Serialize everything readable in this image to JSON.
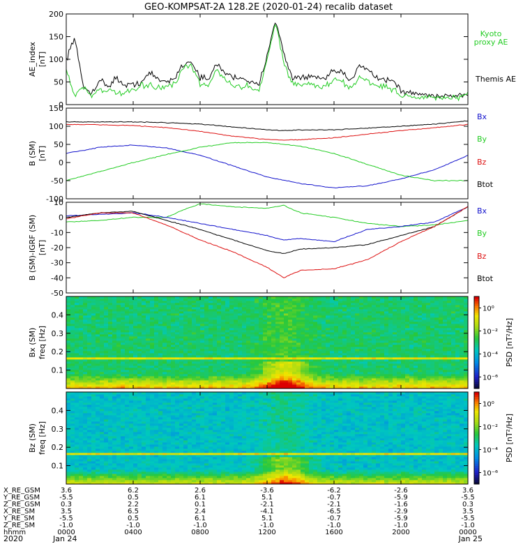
{
  "title": "GEO-KOMPSAT-2A 128.2E (2020-01-24) recalib dataset",
  "colors": {
    "black": "#000000",
    "green": "#22cc22",
    "red": "#dd1111",
    "blue": "#1111cc"
  },
  "chart_data": [
    {
      "type": "line",
      "ylabel": [
        "AE_index",
        "[nT]"
      ],
      "ylim": [
        0,
        200
      ],
      "yticks": [
        0,
        50,
        100,
        150,
        200
      ],
      "legend": [
        {
          "name": "Kyoto proxy AE",
          "lines": [
            "Kyoto",
            "proxy AE"
          ],
          "color": "#22cc22"
        },
        {
          "name": "Themis AE",
          "lines": [
            "Themis AE"
          ],
          "color": "#000000"
        }
      ],
      "series": [
        {
          "name": "Themis AE",
          "color": "#000000",
          "x": [
            0,
            0.5,
            1,
            1.5,
            2,
            2.5,
            3,
            3.5,
            4,
            4.5,
            5,
            5.5,
            6,
            6.5,
            7,
            7.5,
            8,
            8.5,
            9,
            9.5,
            10,
            10.5,
            11,
            11.5,
            12,
            12.5,
            13,
            13.5,
            14,
            14.5,
            15,
            15.5,
            16,
            16.5,
            17,
            17.5,
            18,
            18.5,
            19,
            19.5,
            20,
            20.5,
            21,
            21.5,
            22,
            22.5,
            23,
            23.5,
            24
          ],
          "y": [
            100,
            150,
            40,
            25,
            55,
            40,
            60,
            40,
            45,
            50,
            70,
            55,
            50,
            60,
            90,
            95,
            60,
            55,
            90,
            70,
            60,
            60,
            50,
            40,
            110,
            190,
            110,
            60,
            60,
            60,
            60,
            55,
            75,
            70,
            50,
            90,
            80,
            60,
            55,
            55,
            30,
            25,
            25,
            20,
            20,
            20,
            20,
            20,
            25
          ]
        },
        {
          "name": "Kyoto proxy AE",
          "color": "#22cc22",
          "x": [
            0,
            0.5,
            1,
            1.5,
            2,
            2.5,
            3,
            3.5,
            4,
            4.5,
            5,
            5.5,
            6,
            6.5,
            7,
            7.5,
            8,
            8.5,
            9,
            9.5,
            10,
            10.5,
            11,
            11.5,
            12,
            12.5,
            13,
            13.5,
            14,
            14.5,
            15,
            15.5,
            16,
            16.5,
            17,
            17.5,
            18,
            18.5,
            19,
            19.5,
            20,
            20.5,
            21,
            21.5,
            22,
            22.5,
            23,
            23.5,
            24
          ],
          "y": [
            75,
            20,
            40,
            20,
            35,
            30,
            25,
            25,
            30,
            40,
            45,
            35,
            40,
            45,
            80,
            85,
            45,
            40,
            80,
            55,
            40,
            40,
            40,
            30,
            100,
            180,
            95,
            45,
            45,
            45,
            40,
            40,
            55,
            50,
            35,
            60,
            55,
            40,
            40,
            35,
            20,
            20,
            15,
            15,
            15,
            15,
            15,
            15,
            20
          ]
        }
      ]
    },
    {
      "type": "line",
      "ylabel": [
        "B (SM)",
        "[nT]"
      ],
      "ylim": [
        -100,
        150
      ],
      "yticks": [
        -100,
        -50,
        0,
        50,
        100,
        150
      ],
      "legend": [
        {
          "name": "Bx",
          "lines": [
            "Bx"
          ],
          "color": "#1111cc"
        },
        {
          "name": "By",
          "lines": [
            "By"
          ],
          "color": "#22cc22"
        },
        {
          "name": "Bz",
          "lines": [
            "Bz"
          ],
          "color": "#dd1111"
        },
        {
          "name": "Btot",
          "lines": [
            "Btot"
          ],
          "color": "#000000"
        }
      ],
      "series": [
        {
          "name": "Btot",
          "color": "#000000",
          "x": [
            0,
            2,
            4,
            6,
            8,
            10,
            12,
            13,
            14,
            16,
            18,
            20,
            22,
            24
          ],
          "y": [
            112,
            112,
            112,
            110,
            106,
            98,
            90,
            88,
            90,
            90,
            95,
            100,
            106,
            115
          ]
        },
        {
          "name": "Bz",
          "color": "#dd1111",
          "x": [
            0,
            2,
            4,
            6,
            8,
            10,
            12,
            13,
            14,
            16,
            18,
            20,
            22,
            24
          ],
          "y": [
            105,
            104,
            102,
            96,
            86,
            72,
            64,
            62,
            63,
            68,
            78,
            88,
            96,
            105
          ]
        },
        {
          "name": "Bx",
          "color": "#1111cc",
          "x": [
            0,
            2,
            4,
            6,
            8,
            10,
            12,
            14,
            16,
            18,
            20,
            22,
            24
          ],
          "y": [
            25,
            42,
            48,
            40,
            20,
            -10,
            -40,
            -58,
            -70,
            -64,
            -45,
            -20,
            20
          ]
        },
        {
          "name": "By",
          "color": "#22cc22",
          "x": [
            0,
            2,
            4,
            6,
            8,
            10,
            12,
            14,
            16,
            18,
            20,
            22,
            24
          ],
          "y": [
            -50,
            -25,
            0,
            22,
            42,
            55,
            55,
            45,
            25,
            -5,
            -35,
            -50,
            -50
          ]
        }
      ]
    },
    {
      "type": "line",
      "ylabel": [
        "B (SM)-IGRF (SM)",
        "[nT]"
      ],
      "ylim": [
        -50,
        10
      ],
      "yticks": [
        -50,
        -40,
        -30,
        -20,
        -10,
        0,
        10
      ],
      "legend": [
        {
          "name": "Bx",
          "lines": [
            "Bx"
          ],
          "color": "#1111cc"
        },
        {
          "name": "By",
          "lines": [
            "By"
          ],
          "color": "#22cc22"
        },
        {
          "name": "Bz",
          "lines": [
            "Bz"
          ],
          "color": "#dd1111"
        },
        {
          "name": "Btot",
          "lines": [
            "Btot"
          ],
          "color": "#000000"
        }
      ],
      "series": [
        {
          "name": "By",
          "color": "#22cc22",
          "x": [
            0,
            2,
            4,
            6,
            7,
            8,
            10,
            12,
            13,
            14,
            16,
            18,
            20,
            22,
            24
          ],
          "y": [
            -3,
            -2,
            0,
            0,
            5,
            9,
            7,
            6,
            8,
            3,
            0,
            -4,
            -6,
            -5,
            -2
          ]
        },
        {
          "name": "Bx",
          "color": "#1111cc",
          "x": [
            0,
            2,
            4,
            6,
            8,
            10,
            12,
            13,
            14,
            16,
            17,
            18,
            20,
            22,
            24
          ],
          "y": [
            1,
            2,
            3,
            0,
            -4,
            -8,
            -12,
            -15,
            -14,
            -16,
            -12,
            -8,
            -6,
            -3,
            7
          ]
        },
        {
          "name": "Btot",
          "color": "#000000",
          "x": [
            0,
            2,
            4,
            6,
            8,
            10,
            12,
            13,
            14,
            16,
            18,
            20,
            22,
            24
          ],
          "y": [
            0,
            3,
            4,
            -2,
            -8,
            -15,
            -22,
            -24,
            -21,
            -20,
            -18,
            -12,
            -6,
            7
          ]
        },
        {
          "name": "Bz",
          "color": "#dd1111",
          "x": [
            0,
            2,
            4,
            6,
            8,
            10,
            12,
            13,
            14,
            16,
            18,
            20,
            22,
            24
          ],
          "y": [
            -1,
            3,
            3,
            -5,
            -15,
            -23,
            -33,
            -40,
            -35,
            -34,
            -28,
            -16,
            -6,
            7
          ]
        }
      ]
    },
    {
      "type": "heatmap",
      "ylabel": [
        "Bx (SM)",
        "freq [Hz]"
      ],
      "ylim": [
        0,
        0.5
      ],
      "yticks": [
        0.1,
        0.2,
        0.3,
        0.4
      ],
      "colorbar": {
        "label": "PSD [nT²/Hz]",
        "ticks": [
          "10⁰",
          "10⁻²",
          "10⁻⁴",
          "10⁻⁶"
        ],
        "range": [
          -7,
          1
        ]
      },
      "features": {
        "line_freq": 0.17,
        "background": "green"
      }
    },
    {
      "type": "heatmap",
      "ylabel": [
        "Bz (SM)",
        "freq [Hz]"
      ],
      "ylim": [
        0,
        0.5
      ],
      "yticks": [
        0.1,
        0.2,
        0.3,
        0.4
      ],
      "colorbar": {
        "label": "PSD [nT²/Hz]",
        "ticks": [
          "10⁰",
          "10⁻²",
          "10⁻⁴",
          "10⁻⁶"
        ],
        "range": [
          -7,
          1
        ]
      },
      "features": {
        "line_freq": 0.17,
        "background": "cyan"
      }
    }
  ],
  "ephemeris": {
    "rows": [
      {
        "label": "X_RE_GSM",
        "values": [
          "3.6",
          "6.2",
          "2.6",
          "-3.6",
          "-6.2",
          "-2.6",
          "3.6"
        ]
      },
      {
        "label": "Y_RE_GSM",
        "values": [
          "-5.5",
          "0.5",
          "6.1",
          "5.1",
          "-0.7",
          "-5.9",
          "-5.5"
        ]
      },
      {
        "label": "Z_RE_GSM",
        "values": [
          "0.3",
          "2.2",
          "0.1",
          "-2.1",
          "-2.1",
          "-1.6",
          "0.3"
        ]
      },
      {
        "label": "X_RE_SM",
        "values": [
          "3.5",
          "6.5",
          "2.4",
          "-4.1",
          "-6.5",
          "-2.9",
          "3.5"
        ]
      },
      {
        "label": "Y_RE_SM",
        "values": [
          "-5.5",
          "0.5",
          "6.1",
          "5.1",
          "-0.7",
          "-5.9",
          "-5.5"
        ]
      },
      {
        "label": "Z_RE_SM",
        "values": [
          "-1.0",
          "-1.0",
          "-1.0",
          "-1.0",
          "-1.0",
          "-1.0",
          "-1.0"
        ]
      },
      {
        "label": "hhmm",
        "values": [
          "0000",
          "0400",
          "0800",
          "1200",
          "1600",
          "2000",
          "0000"
        ]
      }
    ],
    "year": "2020",
    "dates": [
      "Jan 24",
      "Jan 25"
    ]
  }
}
